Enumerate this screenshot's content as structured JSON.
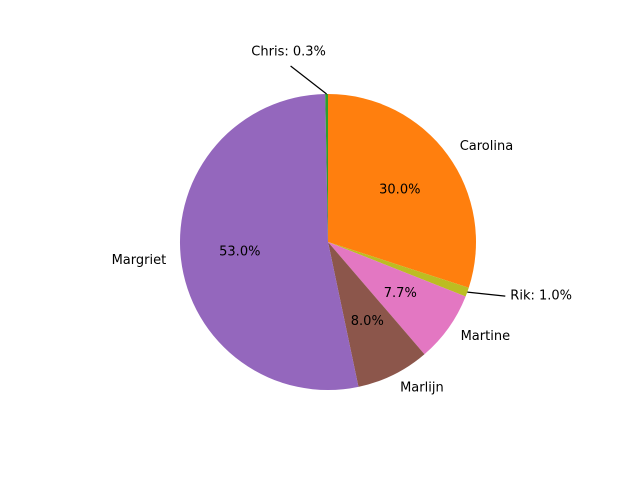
{
  "chart_data": {
    "type": "pie",
    "title": "",
    "slices": [
      {
        "label": "Carolina",
        "value": 30.0,
        "pct_label": "30.0%",
        "color": "#ff7f0e",
        "callout": false
      },
      {
        "label": "Rik",
        "value": 1.0,
        "pct_label": "1.0%",
        "color": "#bcbd22",
        "callout": true
      },
      {
        "label": "Martine",
        "value": 7.7,
        "pct_label": "7.7%",
        "color": "#e377c2",
        "callout": false
      },
      {
        "label": "Marlijn",
        "value": 8.0,
        "pct_label": "8.0%",
        "color": "#8c564b",
        "callout": false
      },
      {
        "label": "Margriet",
        "value": 53.0,
        "pct_label": "53.0%",
        "color": "#9467bd",
        "callout": false
      },
      {
        "label": "Chris",
        "value": 0.3,
        "pct_label": "0.3%",
        "color": "#2ca02c",
        "callout": true
      }
    ],
    "start_angle_deg": 90,
    "direction": "clockwise",
    "legend": "none"
  }
}
